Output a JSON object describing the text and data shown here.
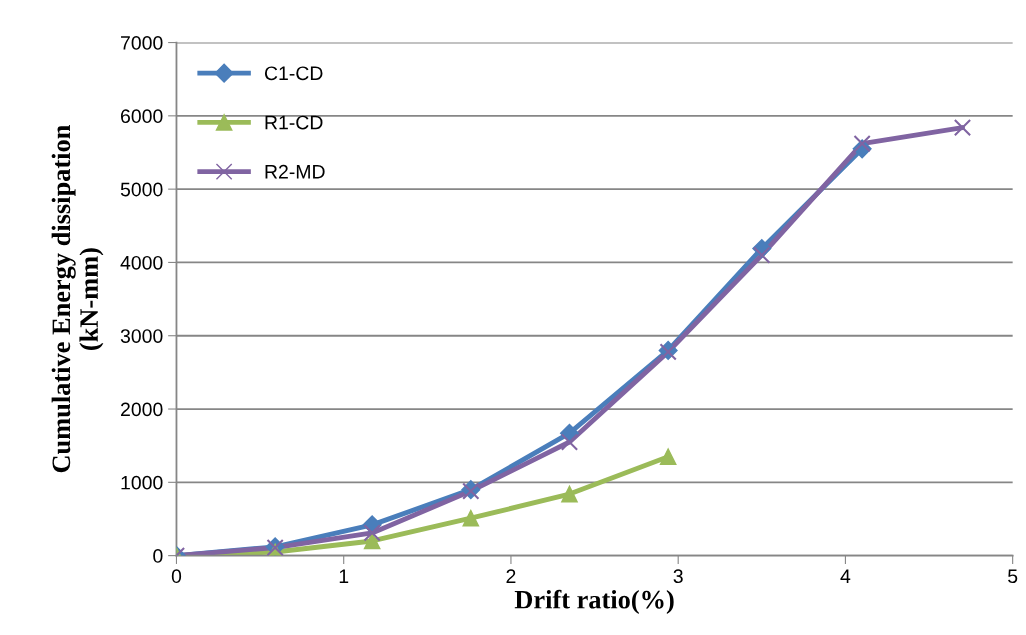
{
  "chart_data": {
    "type": "line",
    "xlabel": "Drift ratio(%)",
    "ylabel": "Cumulative Energy dissipation\n(kN-mm)",
    "x": [
      0,
      0.59,
      1.17,
      1.76,
      2.35,
      2.94,
      3.5,
      4.1,
      4.7
    ],
    "series": [
      {
        "name": "C1-CD",
        "color": "#4a7ebb",
        "marker": "diamond",
        "values": [
          0,
          120,
          420,
          900,
          1670,
          2800,
          4190,
          5550,
          null
        ]
      },
      {
        "name": "R1-CD",
        "color": "#9bbb59",
        "marker": "triangle",
        "values": [
          0,
          50,
          200,
          510,
          840,
          1350,
          null,
          null,
          null
        ]
      },
      {
        "name": "R2-MD",
        "color": "#8064a2",
        "marker": "cross",
        "values": [
          0,
          110,
          310,
          880,
          1550,
          2780,
          4100,
          5620,
          5840
        ]
      }
    ],
    "xlim": [
      0,
      5
    ],
    "xticks": [
      0,
      1,
      2,
      3,
      4,
      5
    ],
    "ylim": [
      0,
      7000
    ],
    "yticks": [
      0,
      1000,
      2000,
      3000,
      4000,
      5000,
      6000,
      7000
    ],
    "grid": "y",
    "legend": "top left",
    "line_style": "solid"
  }
}
